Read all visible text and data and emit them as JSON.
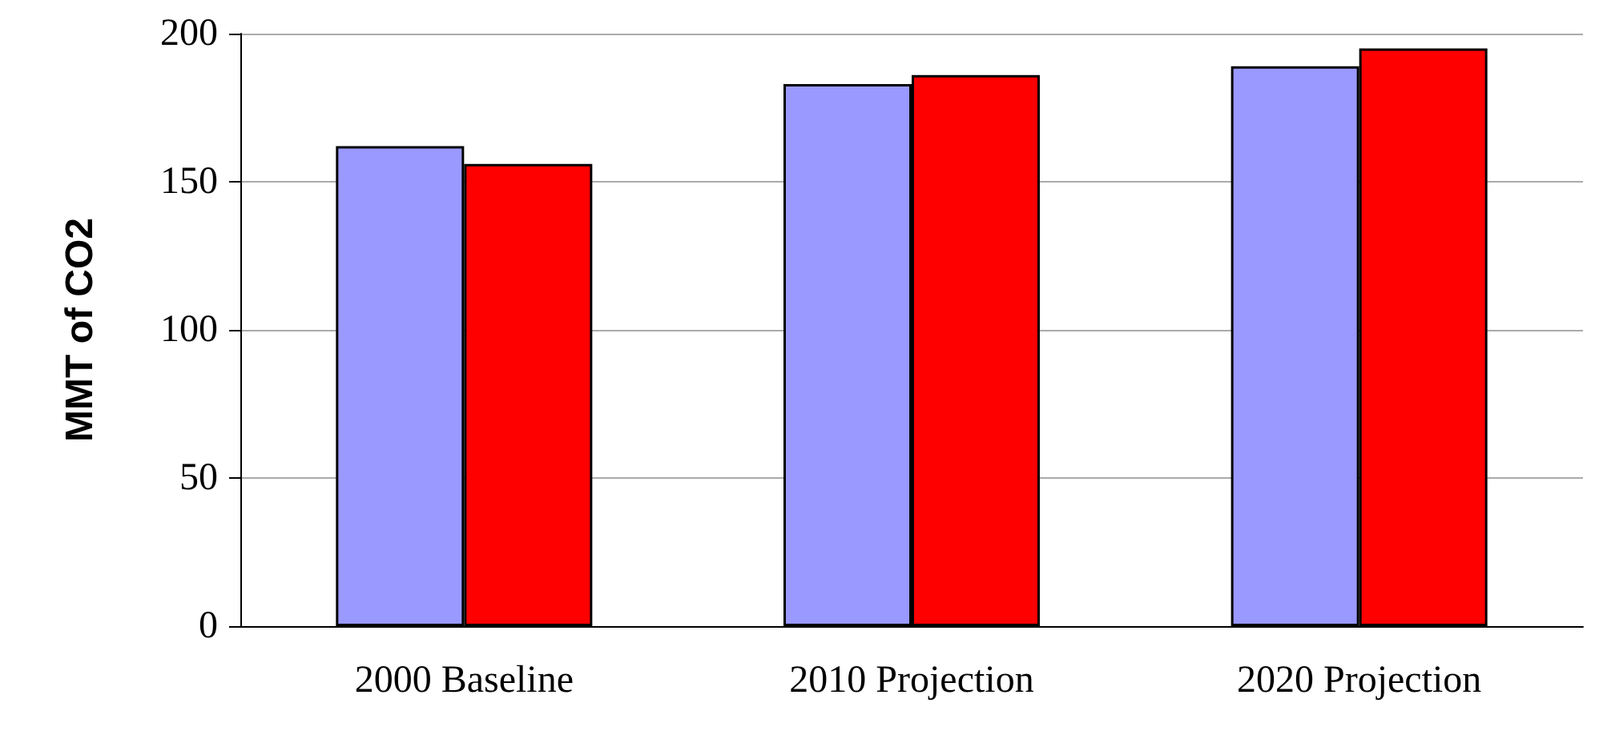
{
  "chart_data": {
    "type": "bar",
    "ylabel": "MMT of CO2",
    "categories": [
      "2000 Baseline",
      "2010 Projection",
      "2020 Projection"
    ],
    "series": [
      {
        "color": "#9999ff",
        "values": [
          162,
          183,
          189
        ]
      },
      {
        "color": "#ff0000",
        "values": [
          156,
          186,
          195
        ]
      }
    ],
    "ylim": [
      0,
      200
    ],
    "yticks": [
      0,
      50,
      100,
      150,
      200
    ],
    "grid": "y"
  }
}
